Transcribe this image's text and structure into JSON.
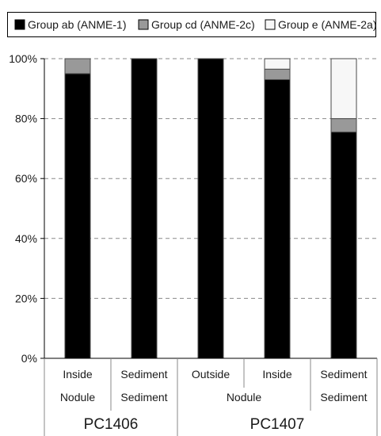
{
  "chart_data": {
    "type": "bar",
    "stacked": true,
    "percent": true,
    "categories": [
      "Inside",
      "Sediment",
      "Outside",
      "Inside",
      "Sediment"
    ],
    "category_groups": [
      {
        "label": "Nodule",
        "members": [
          0
        ]
      },
      {
        "label": "Sediment",
        "members": [
          1
        ]
      },
      {
        "label": "Nodule",
        "members": [
          2,
          3
        ]
      },
      {
        "label": "Sediment",
        "members": [
          4
        ]
      }
    ],
    "samples": [
      {
        "label": "PC1406",
        "members": [
          0,
          1
        ]
      },
      {
        "label": "PC1407",
        "members": [
          2,
          3,
          4
        ]
      }
    ],
    "series": [
      {
        "name": "Group ab (ANME-1)",
        "values": [
          95,
          100,
          100,
          93,
          75.5
        ],
        "color": "#000000"
      },
      {
        "name": "Group cd (ANME-2c)",
        "values": [
          5,
          0,
          0,
          3.5,
          4.5
        ],
        "color": "#999999"
      },
      {
        "name": "Group e (ANME-2a)",
        "values": [
          0,
          0,
          0,
          3.5,
          20
        ],
        "color": "#f7f7f7"
      }
    ],
    "ylim": [
      0,
      100
    ],
    "yticks": [
      "0%",
      "20%",
      "40%",
      "60%",
      "80%",
      "100%"
    ],
    "grid": "horizontal dashed",
    "legend_position": "top"
  }
}
